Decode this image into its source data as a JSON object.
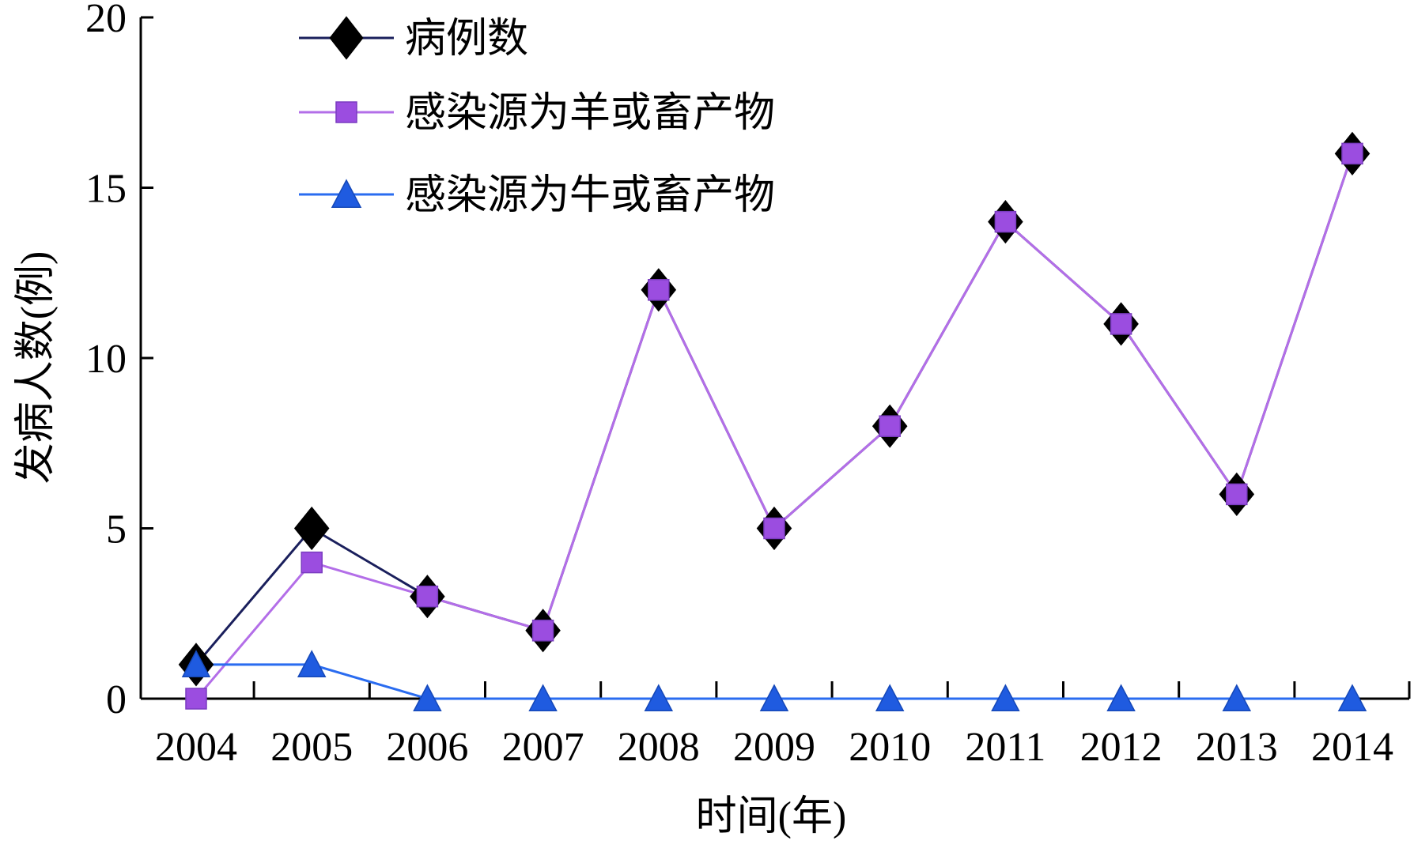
{
  "chart_data": {
    "type": "line",
    "title": "",
    "xlabel": "时间(年)",
    "ylabel": "发病人数(例)",
    "x": [
      "2004",
      "2005",
      "2006",
      "2007",
      "2008",
      "2009",
      "2010",
      "2011",
      "2012",
      "2013",
      "2014"
    ],
    "ylim": [
      0,
      20
    ],
    "yticks": [
      0,
      5,
      10,
      15,
      20
    ],
    "grid": false,
    "legend_position": "top-left",
    "series": [
      {
        "name": "病例数",
        "marker": "diamond",
        "color": "#1a1f5c",
        "marker_color": "#000000",
        "values": [
          1,
          5,
          3,
          2,
          12,
          5,
          8,
          14,
          11,
          6,
          16
        ]
      },
      {
        "name": "感染源为羊或畜产物",
        "marker": "square",
        "color": "#b36ee8",
        "marker_color": "#9b4de0",
        "values": [
          0,
          4,
          3,
          2,
          12,
          5,
          8,
          14,
          11,
          6,
          16
        ]
      },
      {
        "name": "感染源为牛或畜产物",
        "marker": "triangle",
        "color": "#2a6cf0",
        "marker_color": "#1f5be0",
        "values": [
          1,
          1,
          0,
          0,
          0,
          0,
          0,
          0,
          0,
          0,
          0
        ]
      }
    ]
  }
}
